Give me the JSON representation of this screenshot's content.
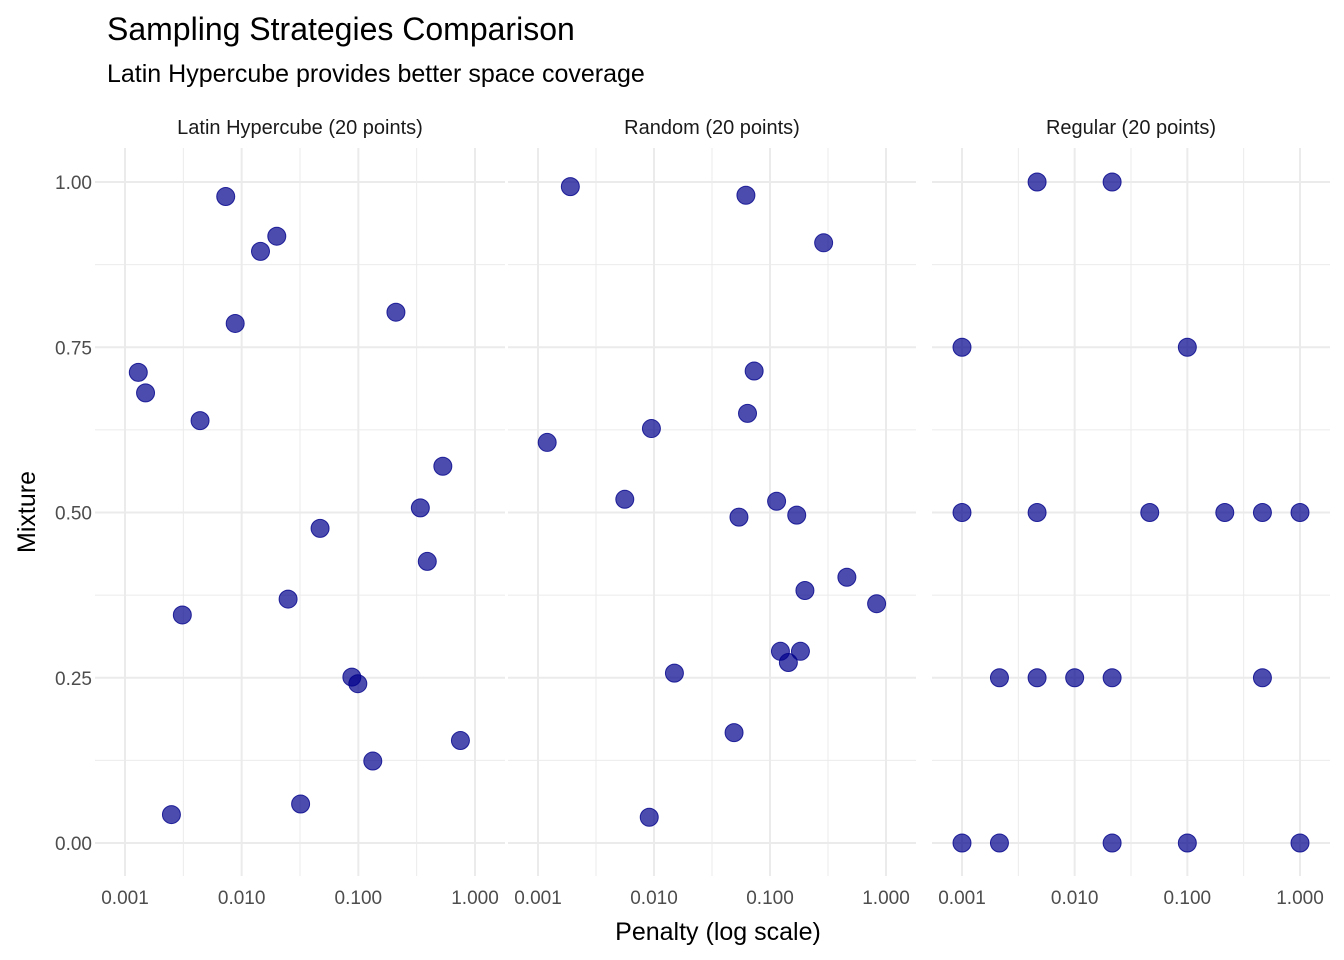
{
  "chart_data": {
    "type": "scatter",
    "title": "Sampling Strategies Comparison",
    "subtitle": "Latin Hypercube provides better space coverage",
    "xlabel": "Penalty (log scale)",
    "ylabel": "Mixture",
    "x_scale": "log10",
    "xlim": [
      0.001,
      1.0
    ],
    "ylim": [
      0.0,
      1.0
    ],
    "x_ticks": [
      "0.001",
      "0.010",
      "0.100",
      "1.000"
    ],
    "y_ticks": [
      "0.00",
      "0.25",
      "0.50",
      "0.75",
      "1.00"
    ],
    "grid": true,
    "point_color": "#00008b",
    "facets": [
      {
        "label": "Latin Hypercube (20 points)",
        "points": [
          {
            "x": 0.0073,
            "y": 0.978
          },
          {
            "x": 0.02,
            "y": 0.918
          },
          {
            "x": 0.0145,
            "y": 0.895
          },
          {
            "x": 0.0088,
            "y": 0.786
          },
          {
            "x": 0.21,
            "y": 0.803
          },
          {
            "x": 0.0013,
            "y": 0.712
          },
          {
            "x": 0.0015,
            "y": 0.681
          },
          {
            "x": 0.0044,
            "y": 0.639
          },
          {
            "x": 0.53,
            "y": 0.57
          },
          {
            "x": 0.34,
            "y": 0.507
          },
          {
            "x": 0.047,
            "y": 0.476
          },
          {
            "x": 0.39,
            "y": 0.426
          },
          {
            "x": 0.025,
            "y": 0.369
          },
          {
            "x": 0.0031,
            "y": 0.345
          },
          {
            "x": 0.088,
            "y": 0.251
          },
          {
            "x": 0.099,
            "y": 0.241
          },
          {
            "x": 0.75,
            "y": 0.155
          },
          {
            "x": 0.133,
            "y": 0.124
          },
          {
            "x": 0.032,
            "y": 0.059
          },
          {
            "x": 0.0025,
            "y": 0.043
          }
        ]
      },
      {
        "label": "Random (20 points)",
        "points": [
          {
            "x": 0.0019,
            "y": 0.993
          },
          {
            "x": 0.062,
            "y": 0.98
          },
          {
            "x": 0.29,
            "y": 0.908
          },
          {
            "x": 0.073,
            "y": 0.714
          },
          {
            "x": 0.064,
            "y": 0.65
          },
          {
            "x": 0.0095,
            "y": 0.627
          },
          {
            "x": 0.0012,
            "y": 0.606
          },
          {
            "x": 0.0056,
            "y": 0.52
          },
          {
            "x": 0.114,
            "y": 0.517
          },
          {
            "x": 0.17,
            "y": 0.496
          },
          {
            "x": 0.054,
            "y": 0.493
          },
          {
            "x": 0.46,
            "y": 0.402
          },
          {
            "x": 0.2,
            "y": 0.382
          },
          {
            "x": 0.83,
            "y": 0.362
          },
          {
            "x": 0.123,
            "y": 0.29
          },
          {
            "x": 0.183,
            "y": 0.29
          },
          {
            "x": 0.144,
            "y": 0.273
          },
          {
            "x": 0.015,
            "y": 0.257
          },
          {
            "x": 0.049,
            "y": 0.167
          },
          {
            "x": 0.0091,
            "y": 0.039
          }
        ]
      },
      {
        "label": "Regular (20 points)",
        "points": [
          {
            "x": 0.00464,
            "y": 1.0
          },
          {
            "x": 0.0215,
            "y": 1.0
          },
          {
            "x": 0.001,
            "y": 0.75
          },
          {
            "x": 0.1,
            "y": 0.75
          },
          {
            "x": 0.001,
            "y": 0.5
          },
          {
            "x": 0.00464,
            "y": 0.5
          },
          {
            "x": 0.0464,
            "y": 0.5
          },
          {
            "x": 0.215,
            "y": 0.5
          },
          {
            "x": 0.464,
            "y": 0.5
          },
          {
            "x": 1.0,
            "y": 0.5
          },
          {
            "x": 0.00215,
            "y": 0.25
          },
          {
            "x": 0.00464,
            "y": 0.25
          },
          {
            "x": 0.01,
            "y": 0.25
          },
          {
            "x": 0.0215,
            "y": 0.25
          },
          {
            "x": 0.464,
            "y": 0.25
          },
          {
            "x": 0.001,
            "y": 0.0
          },
          {
            "x": 0.00215,
            "y": 0.0
          },
          {
            "x": 0.0215,
            "y": 0.0
          },
          {
            "x": 0.1,
            "y": 0.0
          },
          {
            "x": 1.0,
            "y": 0.0
          }
        ]
      }
    ]
  }
}
